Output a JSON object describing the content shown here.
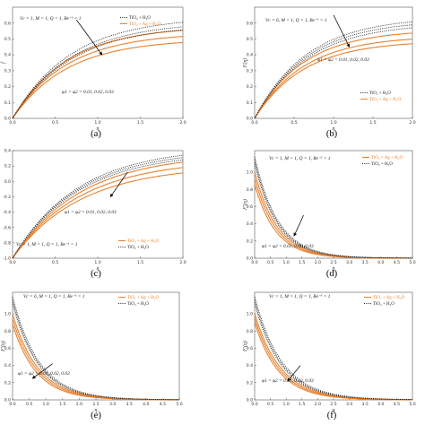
{
  "colors": {
    "hybrid": "#e8822f",
    "nano": "#222222",
    "arrow": "#111111"
  },
  "chart_data": [
    {
      "id": "a",
      "type": "line",
      "panel_label": "(a)",
      "xlabel": "η",
      "ylabel": "f",
      "xlim": [
        0,
        2
      ],
      "ylim": [
        0,
        0.7
      ],
      "xticks": [
        "0.0",
        "0.5",
        "1.0",
        "1.5",
        "2.0"
      ],
      "yticks": [
        "0.0",
        "0.1",
        "0.2",
        "0.3",
        "0.4",
        "0.5",
        "0.6"
      ],
      "params": "Vc = 1, M = 1, Q = 1, Be⁻¹ = 1",
      "annotation": "φ1 = φ2 = 0.01, 0.02, 0.03",
      "legend_position": "top-right",
      "legend": [
        "TiO₂ + H₂O",
        "TiO₂ + Ag + H₂O"
      ],
      "series": [
        {
          "name": "TiO₂ + Ag + H₂O",
          "style": "solid",
          "asymptote": 0.58,
          "k": 1.55
        },
        {
          "name": "TiO₂ + Ag + H₂O",
          "style": "solid",
          "asymptote": 0.54,
          "k": 1.55
        },
        {
          "name": "TiO₂ + Ag + H₂O",
          "style": "solid",
          "asymptote": 0.5,
          "k": 1.55
        },
        {
          "name": "TiO₂ + H₂O",
          "style": "dotted",
          "asymptote": 0.64,
          "k": 1.45
        },
        {
          "name": "TiO₂ + H₂O",
          "style": "dotted",
          "asymptote": 0.61,
          "k": 1.45
        },
        {
          "name": "TiO₂ + H₂O",
          "style": "dotted",
          "asymptote": 0.59,
          "k": 1.45
        }
      ]
    },
    {
      "id": "b",
      "type": "line",
      "panel_label": "(b)",
      "xlabel": "η",
      "ylabel": "F(η)",
      "xlim": [
        0,
        2
      ],
      "ylim": [
        0,
        0.7
      ],
      "xticks": [
        "0.0",
        "0.5",
        "1.0",
        "1.5",
        "2.0"
      ],
      "yticks": [
        "0.0",
        "0.1",
        "0.2",
        "0.3",
        "0.4",
        "0.5",
        "0.6"
      ],
      "params": "Vc = 6, M = 1, Q = 1, Be⁻¹ = 1",
      "annotation": "φ1 = φ2 = 0.01, 0.02, 0.03",
      "legend_position": "bottom-right",
      "legend": [
        "TiO₂ + H₂O",
        "TiO₂ + Ag + H₂O"
      ],
      "series": [
        {
          "name": "TiO₂ + Ag + H₂O",
          "style": "solid",
          "asymptote": 0.56,
          "k": 1.6
        },
        {
          "name": "TiO₂ + Ag + H₂O",
          "style": "solid",
          "asymptote": 0.52,
          "k": 1.6
        },
        {
          "name": "TiO₂ + Ag + H₂O",
          "style": "solid",
          "asymptote": 0.49,
          "k": 1.6
        },
        {
          "name": "TiO₂ + H₂O",
          "style": "dotted",
          "asymptote": 0.64,
          "k": 1.5
        },
        {
          "name": "TiO₂ + H₂O",
          "style": "dotted",
          "asymptote": 0.62,
          "k": 1.5
        },
        {
          "name": "TiO₂ + H₂O",
          "style": "dotted",
          "asymptote": 0.6,
          "k": 1.5
        }
      ]
    },
    {
      "id": "c",
      "type": "line",
      "panel_label": "(c)",
      "xlabel": "η",
      "ylabel": "",
      "xlim": [
        0,
        2
      ],
      "ylim": [
        -1,
        0.4
      ],
      "xticks": [
        "0.0",
        "0.5",
        "1.0",
        "1.5",
        "2.0"
      ],
      "yticks": [
        "-1.0",
        "-0.8",
        "-0.6",
        "-0.4",
        "-0.2",
        "0.0",
        "0.2",
        "0.4"
      ],
      "params": "Vc = 1, M = 1, Q = 1, Be⁻¹ = 1",
      "annotation": "φ1 = φ2 = 0.01, 0.02, 0.03",
      "legend_position": "bottom-right",
      "legend": [
        "TiO₂ + Ag + H₂O",
        "TiO₂ + H₂O"
      ],
      "series": [
        {
          "name": "TiO₂ + Ag + H₂O",
          "style": "solid",
          "start": -1.0,
          "end": 0.25,
          "k": 1.25
        },
        {
          "name": "TiO₂ + Ag + H₂O",
          "style": "solid",
          "start": -1.0,
          "end": 0.18,
          "k": 1.25
        },
        {
          "name": "TiO₂ + Ag + H₂O",
          "style": "solid",
          "start": -1.0,
          "end": 0.11,
          "k": 1.25
        },
        {
          "name": "TiO₂ + H₂O",
          "style": "dotted",
          "start": -1.0,
          "end": 0.34,
          "k": 1.3
        },
        {
          "name": "TiO₂ + H₂O",
          "style": "dotted",
          "start": -1.0,
          "end": 0.31,
          "k": 1.3
        },
        {
          "name": "TiO₂ + H₂O",
          "style": "dotted",
          "start": -1.0,
          "end": 0.28,
          "k": 1.3
        }
      ]
    },
    {
      "id": "d",
      "type": "line",
      "panel_label": "(d)",
      "xlabel": "η",
      "ylabel": "F′(η)",
      "xlim": [
        0,
        5
      ],
      "ylim": [
        0,
        1.25
      ],
      "xticks": [
        "0.0",
        "0.5",
        "1.0",
        "1.5",
        "2.0",
        "2.5",
        "3.0",
        "3.5",
        "4.0",
        "4.5",
        "5.0"
      ],
      "yticks": [
        "0.0",
        "0.2",
        "0.4",
        "0.6",
        "0.8",
        "1.0"
      ],
      "params": "Vc = 1, M = 1, Q = 1, Be⁻¹ = 1",
      "annotation": "φ1 = φ2 = 0.01, 0.02, 0.03",
      "legend_position": "top-right",
      "legend": [
        "TiO₂ + Ag + H₂O",
        "TiO₂ + H₂O"
      ],
      "series": [
        {
          "name": "TiO₂ + Ag + H₂O",
          "style": "solid",
          "y0": 1.0,
          "k": 1.4
        },
        {
          "name": "TiO₂ + Ag + H₂O",
          "style": "solid",
          "y0": 0.93,
          "k": 1.45
        },
        {
          "name": "TiO₂ + Ag + H₂O",
          "style": "solid",
          "y0": 0.86,
          "k": 1.5
        },
        {
          "name": "TiO₂ + H₂O",
          "style": "dotted",
          "y0": 1.18,
          "k": 1.35
        },
        {
          "name": "TiO₂ + H₂O",
          "style": "dotted",
          "y0": 1.14,
          "k": 1.38
        },
        {
          "name": "TiO₂ + H₂O",
          "style": "dotted",
          "y0": 1.1,
          "k": 1.4
        }
      ]
    },
    {
      "id": "e",
      "type": "line",
      "panel_label": "(e)",
      "xlabel": "η",
      "ylabel": "F′(η)",
      "xlim": [
        0,
        5
      ],
      "ylim": [
        0,
        1.25
      ],
      "xticks": [
        "0.0",
        "0.5",
        "1.0",
        "1.5",
        "2.0",
        "2.5",
        "3.0",
        "3.5",
        "4.0",
        "4.5",
        "5.0"
      ],
      "yticks": [
        "0.0",
        "0.2",
        "0.4",
        "0.6",
        "0.8",
        "1.0"
      ],
      "params": "Vc = 6, M = 1, Q = 1, Be⁻¹ = 1",
      "annotation": "φ1 = φ2 = 0.01, 0.02, 0.03",
      "legend_position": "top-right",
      "legend": [
        "TiO₂ + Ag + H₂O",
        "TiO₂ + H₂O"
      ],
      "series": [
        {
          "name": "TiO₂ + Ag + H₂O",
          "style": "solid",
          "y0": 1.0,
          "k": 1.3
        },
        {
          "name": "TiO₂ + Ag + H₂O",
          "style": "solid",
          "y0": 0.94,
          "k": 1.35
        },
        {
          "name": "TiO₂ + Ag + H₂O",
          "style": "solid",
          "y0": 0.88,
          "k": 1.4
        },
        {
          "name": "TiO₂ + H₂O",
          "style": "dotted",
          "y0": 1.2,
          "k": 1.25
        },
        {
          "name": "TiO₂ + H₂O",
          "style": "dotted",
          "y0": 1.16,
          "k": 1.28
        },
        {
          "name": "TiO₂ + H₂O",
          "style": "dotted",
          "y0": 1.12,
          "k": 1.3
        }
      ]
    },
    {
      "id": "f",
      "type": "line",
      "panel_label": "(f)",
      "xlabel": "η",
      "ylabel": "F′(η)",
      "xlim": [
        0,
        5
      ],
      "ylim": [
        0,
        1.25
      ],
      "xticks": [
        "0.0",
        "0.5",
        "1.0",
        "1.5",
        "2.0",
        "2.5",
        "3.0",
        "3.5",
        "4.0",
        "4.5",
        "5.0"
      ],
      "yticks": [
        "0.0",
        "0.2",
        "0.4",
        "0.6",
        "0.8",
        "1.0"
      ],
      "params": "Vc = 1, M = 1, Q = 1, Be⁻¹ = 1",
      "annotation": "φ1 = φ2 = 0.01, 0.02, 0.03",
      "legend_position": "top-right",
      "legend": [
        "TiO₂ + Ag + H₂O",
        "TiO₂ + H₂O"
      ],
      "series": [
        {
          "name": "TiO₂ + Ag + H₂O",
          "style": "solid",
          "y0": 1.0,
          "k": 1.2
        },
        {
          "name": "TiO₂ + Ag + H₂O",
          "style": "solid",
          "y0": 0.95,
          "k": 1.25
        },
        {
          "name": "TiO₂ + Ag + H₂O",
          "style": "solid",
          "y0": 0.9,
          "k": 1.3
        },
        {
          "name": "TiO₂ + H₂O",
          "style": "dotted",
          "y0": 1.2,
          "k": 1.15
        },
        {
          "name": "TiO₂ + H₂O",
          "style": "dotted",
          "y0": 1.16,
          "k": 1.18
        },
        {
          "name": "TiO₂ + H₂O",
          "style": "dotted",
          "y0": 1.12,
          "k": 1.2
        }
      ]
    }
  ]
}
